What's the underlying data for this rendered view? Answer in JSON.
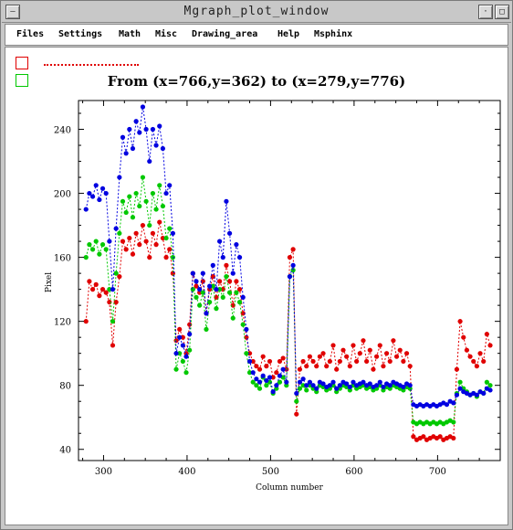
{
  "window": {
    "title": "Mgraph_plot_window",
    "left_button_glyph": "—",
    "right_button_glyph": "□"
  },
  "menu": [
    {
      "label": "Files",
      "name": "menu-files"
    },
    {
      "label": "Settings",
      "name": "menu-settings"
    },
    {
      "label": "Math",
      "name": "menu-math"
    },
    {
      "label": "Misc",
      "name": "menu-misc"
    },
    {
      "label": "Drawing_area",
      "name": "menu-drawing-area"
    },
    {
      "label": "Help",
      "name": "menu-help"
    },
    {
      "label": "Msphinx",
      "name": "menu-msphinx"
    }
  ],
  "legend": [
    {
      "color": "#e00000"
    },
    {
      "color": "#00c800"
    }
  ],
  "chart_data": {
    "type": "line",
    "title": "From (x=766,y=362) to (x=279,y=776)",
    "xlabel": "Column number",
    "ylabel": "Pixel",
    "xlim": [
      270,
      775
    ],
    "ylim": [
      33,
      258
    ],
    "xticks": [
      300,
      400,
      500,
      600,
      700
    ],
    "yticks": [
      40,
      80,
      120,
      160,
      200,
      240
    ],
    "grid": false,
    "series": [
      {
        "color": "#e00000",
        "x": [
          279,
          283,
          287,
          291,
          295,
          299,
          303,
          307,
          311,
          315,
          319,
          323,
          327,
          331,
          335,
          339,
          343,
          347,
          351,
          355,
          359,
          363,
          367,
          371,
          375,
          379,
          383,
          387,
          391,
          395,
          399,
          403,
          407,
          411,
          415,
          419,
          423,
          427,
          431,
          435,
          439,
          443,
          447,
          451,
          455,
          459,
          463,
          467,
          471,
          475,
          479,
          483,
          487,
          491,
          495,
          499,
          503,
          507,
          511,
          515,
          519,
          523,
          527,
          531,
          535,
          539,
          543,
          547,
          551,
          555,
          559,
          563,
          567,
          571,
          575,
          579,
          583,
          587,
          591,
          595,
          599,
          603,
          607,
          611,
          615,
          619,
          623,
          627,
          631,
          635,
          639,
          643,
          647,
          651,
          655,
          659,
          663,
          667,
          671,
          675,
          679,
          683,
          687,
          691,
          695,
          699,
          703,
          707,
          711,
          715,
          719,
          723,
          727,
          731,
          735,
          739,
          743,
          747,
          751,
          755,
          759,
          763
        ],
        "values": [
          120,
          145,
          140,
          143,
          136,
          140,
          138,
          132,
          105,
          132,
          148,
          170,
          165,
          172,
          162,
          175,
          168,
          180,
          170,
          160,
          175,
          168,
          182,
          172,
          160,
          165,
          150,
          108,
          115,
          110,
          100,
          118,
          150,
          142,
          138,
          145,
          125,
          140,
          148,
          135,
          145,
          140,
          155,
          145,
          130,
          145,
          140,
          125,
          110,
          100,
          95,
          92,
          90,
          98,
          92,
          95,
          85,
          88,
          95,
          97,
          90,
          160,
          165,
          62,
          90,
          95,
          92,
          98,
          95,
          92,
          98,
          100,
          92,
          95,
          105,
          90,
          95,
          102,
          98,
          92,
          105,
          95,
          100,
          108,
          95,
          102,
          90,
          98,
          105,
          92,
          100,
          95,
          108,
          98,
          102,
          95,
          100,
          92,
          48,
          46,
          47,
          48,
          46,
          47,
          48,
          47,
          48,
          46,
          47,
          48,
          47,
          90,
          120,
          110,
          102,
          98,
          95,
          92,
          100,
          95,
          112,
          105
        ]
      },
      {
        "color": "#00c800",
        "x": [
          279,
          283,
          287,
          291,
          295,
          299,
          303,
          307,
          311,
          315,
          319,
          323,
          327,
          331,
          335,
          339,
          343,
          347,
          351,
          355,
          359,
          363,
          367,
          371,
          375,
          379,
          383,
          387,
          391,
          395,
          399,
          403,
          407,
          411,
          415,
          419,
          423,
          427,
          431,
          435,
          439,
          443,
          447,
          451,
          455,
          459,
          463,
          467,
          471,
          475,
          479,
          483,
          487,
          491,
          495,
          499,
          503,
          507,
          511,
          515,
          519,
          523,
          527,
          531,
          535,
          539,
          543,
          547,
          551,
          555,
          559,
          563,
          567,
          571,
          575,
          579,
          583,
          587,
          591,
          595,
          599,
          603,
          607,
          611,
          615,
          619,
          623,
          627,
          631,
          635,
          639,
          643,
          647,
          651,
          655,
          659,
          663,
          667,
          671,
          675,
          679,
          683,
          687,
          691,
          695,
          699,
          703,
          707,
          711,
          715,
          719,
          723,
          727,
          731,
          735,
          739,
          743,
          747,
          751,
          755,
          759,
          763
        ],
        "values": [
          160,
          168,
          165,
          170,
          162,
          168,
          165,
          140,
          120,
          150,
          175,
          195,
          188,
          198,
          185,
          200,
          192,
          210,
          195,
          180,
          200,
          190,
          205,
          192,
          172,
          178,
          160,
          90,
          100,
          95,
          88,
          102,
          140,
          135,
          130,
          138,
          115,
          132,
          142,
          128,
          140,
          135,
          148,
          138,
          122,
          138,
          132,
          118,
          100,
          88,
          82,
          80,
          78,
          85,
          80,
          82,
          75,
          78,
          82,
          85,
          80,
          148,
          152,
          70,
          78,
          80,
          77,
          80,
          78,
          76,
          80,
          79,
          77,
          78,
          80,
          76,
          78,
          80,
          79,
          77,
          80,
          78,
          79,
          80,
          78,
          79,
          77,
          78,
          80,
          77,
          79,
          78,
          80,
          79,
          78,
          77,
          79,
          78,
          57,
          56,
          57,
          56,
          57,
          56,
          57,
          56,
          57,
          56,
          57,
          58,
          57,
          75,
          82,
          78,
          76,
          74,
          75,
          73,
          76,
          75,
          82,
          80
        ]
      },
      {
        "color": "#0000e0",
        "x": [
          279,
          283,
          287,
          291,
          295,
          299,
          303,
          307,
          311,
          315,
          319,
          323,
          327,
          331,
          335,
          339,
          343,
          347,
          351,
          355,
          359,
          363,
          367,
          371,
          375,
          379,
          383,
          387,
          391,
          395,
          399,
          403,
          407,
          411,
          415,
          419,
          423,
          427,
          431,
          435,
          439,
          443,
          447,
          451,
          455,
          459,
          463,
          467,
          471,
          475,
          479,
          483,
          487,
          491,
          495,
          499,
          503,
          507,
          511,
          515,
          519,
          523,
          527,
          531,
          535,
          539,
          543,
          547,
          551,
          555,
          559,
          563,
          567,
          571,
          575,
          579,
          583,
          587,
          591,
          595,
          599,
          603,
          607,
          611,
          615,
          619,
          623,
          627,
          631,
          635,
          639,
          643,
          647,
          651,
          655,
          659,
          663,
          667,
          671,
          675,
          679,
          683,
          687,
          691,
          695,
          699,
          703,
          707,
          711,
          715,
          719,
          723,
          727,
          731,
          735,
          739,
          743,
          747,
          751,
          755,
          759,
          763
        ],
        "values": [
          190,
          200,
          198,
          205,
          196,
          203,
          200,
          170,
          140,
          178,
          210,
          235,
          225,
          240,
          228,
          245,
          238,
          254,
          240,
          220,
          240,
          230,
          242,
          228,
          200,
          205,
          175,
          100,
          110,
          105,
          98,
          112,
          150,
          145,
          140,
          150,
          125,
          142,
          155,
          140,
          170,
          160,
          195,
          175,
          150,
          168,
          160,
          135,
          115,
          95,
          88,
          84,
          82,
          86,
          83,
          85,
          76,
          80,
          86,
          90,
          82,
          148,
          155,
          75,
          82,
          84,
          80,
          82,
          80,
          78,
          82,
          81,
          79,
          80,
          82,
          78,
          80,
          82,
          81,
          79,
          82,
          80,
          81,
          82,
          80,
          81,
          79,
          80,
          82,
          79,
          81,
          80,
          82,
          81,
          80,
          79,
          81,
          80,
          68,
          67,
          68,
          67,
          68,
          67,
          68,
          67,
          68,
          69,
          68,
          70,
          69,
          74,
          78,
          76,
          75,
          74,
          75,
          74,
          76,
          75,
          78,
          77
        ]
      }
    ]
  }
}
